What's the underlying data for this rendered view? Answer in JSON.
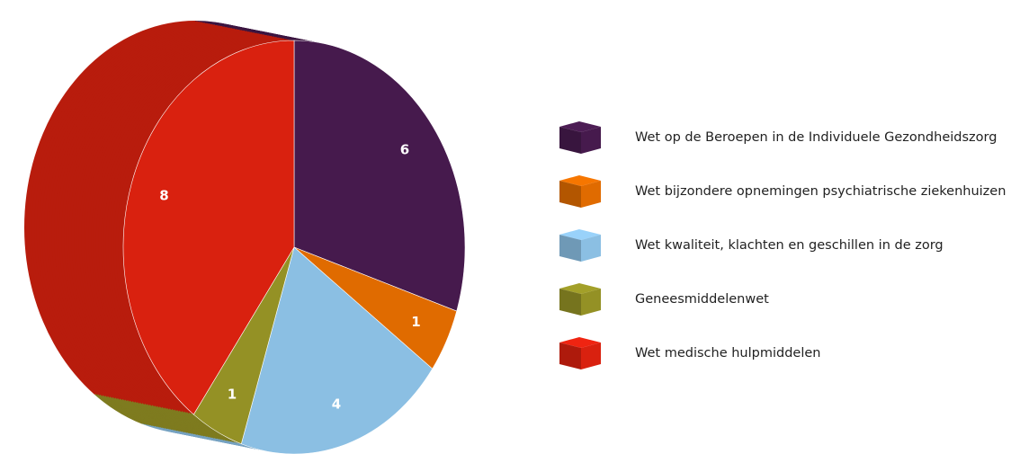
{
  "chart_data": {
    "type": "pie",
    "categories": [
      "Wet op de Beroepen in de Individuele Gezondheidszorg",
      "Wet bijzondere opnemingen psychiatrische ziekenhuizen",
      "Wet kwaliteit, klachten en geschillen in de zorg",
      "Geneesmiddelenwet",
      "Wet medische hulpmiddelen"
    ],
    "values": [
      6,
      1,
      4,
      1,
      8
    ],
    "colors": [
      "#461a4d",
      "#e06b00",
      "#8bbfe3",
      "#949125",
      "#d9210f"
    ]
  }
}
